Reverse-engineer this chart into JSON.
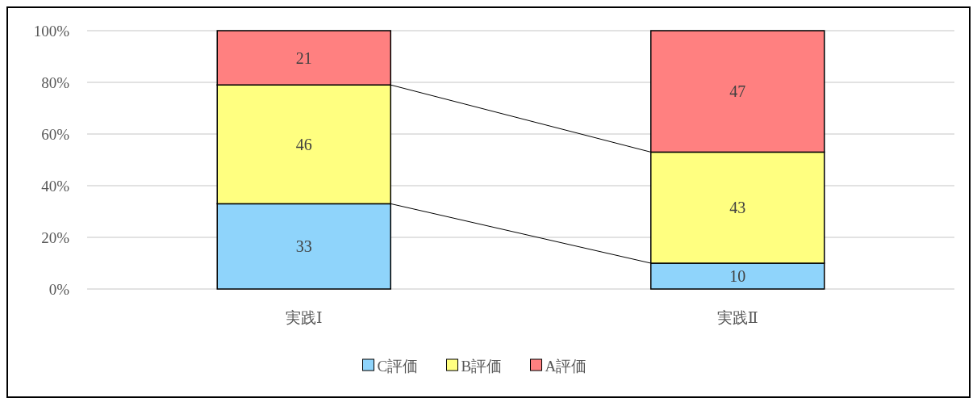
{
  "chart_data": {
    "type": "bar",
    "stacked": true,
    "categories": [
      "実践Ⅰ",
      "実践Ⅱ"
    ],
    "series": [
      {
        "name": "C評価",
        "color": "#8fd4fb",
        "values": [
          33,
          10
        ]
      },
      {
        "name": "B評価",
        "color": "#ffff80",
        "values": [
          46,
          43
        ]
      },
      {
        "name": "A評価",
        "color": "#ff8080",
        "values": [
          21,
          47
        ]
      }
    ],
    "ylim": [
      0,
      100
    ],
    "yticks": [
      {
        "value": 0,
        "label": "0%"
      },
      {
        "value": 20,
        "label": "20%"
      },
      {
        "value": 40,
        "label": "40%"
      },
      {
        "value": 60,
        "label": "60%"
      },
      {
        "value": 80,
        "label": "80%"
      },
      {
        "value": 100,
        "label": "100%"
      }
    ],
    "grid": "y",
    "legend": "bottom",
    "data_labels": true
  }
}
